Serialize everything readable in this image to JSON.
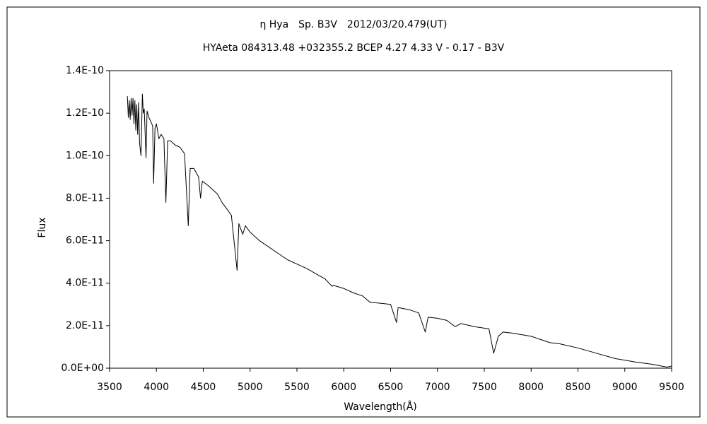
{
  "chart_data": {
    "type": "line",
    "title": "η Hya　Sp. B3V　2012/03/20.479(UT)",
    "subtitle": "HYAeta 084313.48 +032355.2 BCEP 4.27 4.33 V - 0.17 - B3V",
    "x_label": "Wavelength(Å)",
    "y_label": "Flux",
    "x": [
      3690,
      3700,
      3710,
      3720,
      3730,
      3740,
      3750,
      3760,
      3770,
      3780,
      3790,
      3800,
      3810,
      3820,
      3835,
      3850,
      3860,
      3870,
      3889,
      3900,
      3920,
      3940,
      3960,
      3970,
      3985,
      4000,
      4026,
      4050,
      4080,
      4101,
      4120,
      4150,
      4200,
      4250,
      4300,
      4340,
      4360,
      4400,
      4450,
      4471,
      4490,
      4550,
      4600,
      4650,
      4700,
      4750,
      4800,
      4861,
      4880,
      4921,
      4950,
      5000,
      5100,
      5200,
      5300,
      5400,
      5500,
      5600,
      5700,
      5800,
      5876,
      5890,
      6000,
      6100,
      6200,
      6280,
      6400,
      6500,
      6563,
      6580,
      6700,
      6800,
      6870,
      6900,
      7000,
      7100,
      7190,
      7250,
      7400,
      7550,
      7600,
      7650,
      7700,
      7800,
      8000,
      8100,
      8200,
      8300,
      8500,
      8700,
      8900,
      9100,
      9300,
      9450,
      9500
    ],
    "series": [
      {
        "name": "Flux",
        "color": "#000000",
        "values": [
          1.28e-10,
          1.18e-10,
          1.26e-10,
          1.17e-10,
          1.27e-10,
          1.19e-10,
          1.27e-10,
          1.15e-10,
          1.26e-10,
          1.12e-10,
          1.24e-10,
          1.1e-10,
          1.25e-10,
          1.06e-10,
          1e-10,
          1.29e-10,
          1.2e-10,
          1.22e-10,
          9.9e-11,
          1.21e-10,
          1.18e-10,
          1.16e-10,
          1.14e-10,
          8.7e-11,
          1.13e-10,
          1.15e-10,
          1.08e-10,
          1.1e-10,
          1.08e-10,
          7.8e-11,
          1.07e-10,
          1.07e-10,
          1.05e-10,
          1.04e-10,
          1.01e-10,
          6.7e-11,
          9.4e-11,
          9.4e-11,
          9e-11,
          8e-11,
          8.8e-11,
          8.6e-11,
          8.4e-11,
          8.2e-11,
          7.8e-11,
          7.5e-11,
          7.2e-11,
          4.6e-11,
          6.8e-11,
          6.3e-11,
          6.7e-11,
          6.4e-11,
          6e-11,
          5.7e-11,
          5.4e-11,
          5.1e-11,
          4.9e-11,
          4.7e-11,
          4.45e-11,
          4.2e-11,
          3.85e-11,
          3.9e-11,
          3.75e-11,
          3.55e-11,
          3.4e-11,
          3.1e-11,
          3.05e-11,
          3e-11,
          2.15e-11,
          2.85e-11,
          2.75e-11,
          2.6e-11,
          1.7e-11,
          2.4e-11,
          2.35e-11,
          2.25e-11,
          1.95e-11,
          2.1e-11,
          1.95e-11,
          1.85e-11,
          7e-12,
          1.5e-11,
          1.7e-11,
          1.65e-11,
          1.5e-11,
          1.35e-11,
          1.2e-11,
          1.15e-11,
          9.5e-12,
          7e-12,
          4.5e-12,
          3e-12,
          1.8e-12,
          5e-13,
          1e-12
        ]
      }
    ],
    "xlim": [
      3500,
      9500
    ],
    "xticks": [
      3500,
      4000,
      4500,
      5000,
      5500,
      6000,
      6500,
      7000,
      7500,
      8000,
      8500,
      9000,
      9500
    ],
    "ylim": [
      0,
      1.4e-10
    ],
    "yticks": [
      {
        "value": 0,
        "label": "0.0E+00"
      },
      {
        "value": 2e-11,
        "label": "2.0E-11"
      },
      {
        "value": 4e-11,
        "label": "4.0E-11"
      },
      {
        "value": 6e-11,
        "label": "6.0E-11"
      },
      {
        "value": 8e-11,
        "label": "8.0E-11"
      },
      {
        "value": 1e-10,
        "label": "1.0E-10"
      },
      {
        "value": 1.2e-10,
        "label": "1.2E-10"
      },
      {
        "value": 1.4e-10,
        "label": "1.4E-10"
      }
    ],
    "grid": false
  }
}
